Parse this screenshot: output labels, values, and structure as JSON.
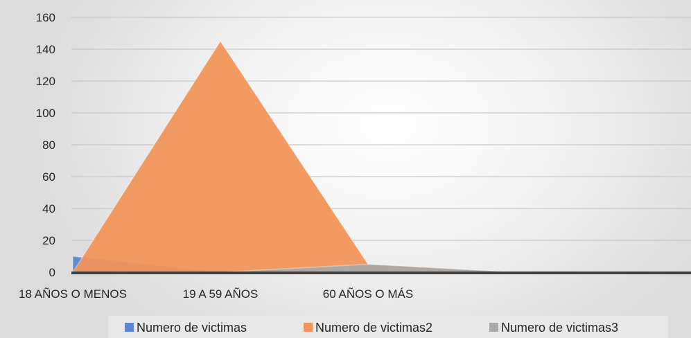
{
  "chart_data": {
    "type": "area",
    "categories": [
      "18 AÑOS O MENOS",
      "19 A 59 AÑOS",
      "60 AÑOS O MÁS",
      "",
      ""
    ],
    "series": [
      {
        "name": "Numero de victimas",
        "values": [
          10,
          0,
          0,
          0,
          0
        ],
        "color": "#5b86d6"
      },
      {
        "name": "Numero de victimas2",
        "values": [
          0,
          145,
          5,
          0,
          0
        ],
        "color": "#f0955a"
      },
      {
        "name": "Numero de victimas3",
        "values": [
          0,
          0,
          5,
          0,
          0
        ],
        "color": "#a9a9a9"
      }
    ],
    "yticks": [
      0,
      20,
      40,
      60,
      80,
      100,
      120,
      140,
      160
    ],
    "ylim": [
      0,
      160
    ],
    "grid": true,
    "legend": "bottom"
  }
}
